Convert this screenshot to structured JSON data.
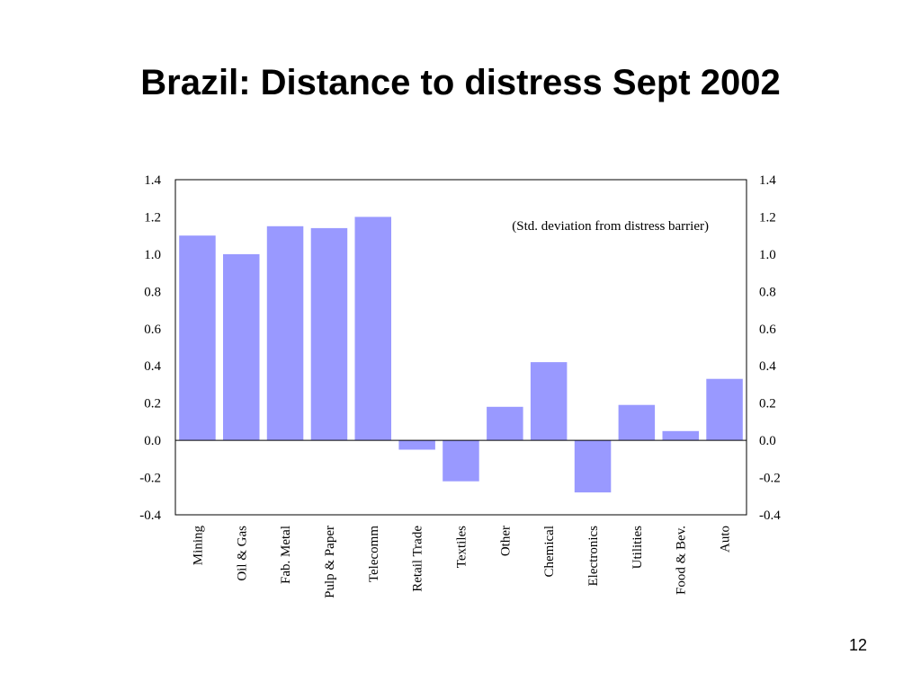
{
  "slide": {
    "title": "Brazil: Distance to distress Sept 2002",
    "page_number": "12"
  },
  "colors": {
    "bar_fill": "#9999ff",
    "axis": "#000000",
    "background": "#ffffff"
  },
  "chart_data": {
    "type": "bar",
    "title": "",
    "annotation": "(Std. deviation from distress barrier)",
    "xlabel": "",
    "ylabel": "",
    "ylim": [
      -0.4,
      1.4
    ],
    "yticks": [
      "1.4",
      "1.2",
      "1.0",
      "0.8",
      "0.6",
      "0.4",
      "0.2",
      "0.0",
      "-0.2",
      "-0.4"
    ],
    "ytick_values": [
      1.4,
      1.2,
      1.0,
      0.8,
      0.6,
      0.4,
      0.2,
      0.0,
      -0.2,
      -0.4
    ],
    "y_axis_both_sides": true,
    "grid": false,
    "categories": [
      "Mining",
      "Oil & Gas",
      "Fab. Metal",
      "Pulp & Paper",
      "Telecomm",
      "Retail Trade",
      "Textiles",
      "Other",
      "Chemical",
      "Electronics",
      "Utilities",
      "Food & Bev.",
      "Auto"
    ],
    "values": [
      1.1,
      1.0,
      1.15,
      1.14,
      1.2,
      -0.05,
      -0.22,
      0.18,
      0.42,
      -0.28,
      0.19,
      0.05,
      0.33
    ]
  }
}
